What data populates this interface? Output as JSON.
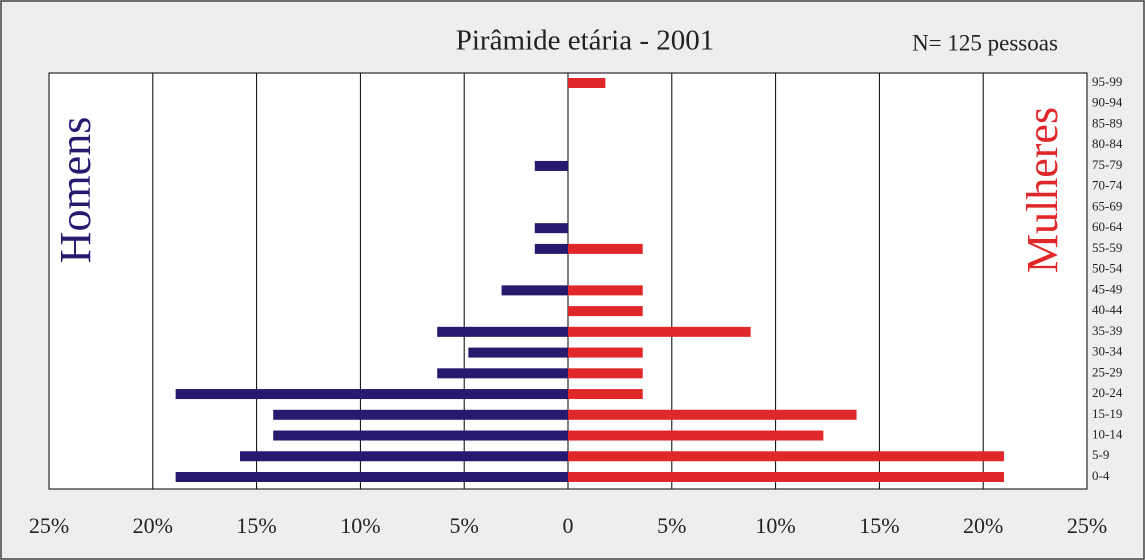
{
  "chart_data": {
    "type": "pyramid",
    "title": "Pirâmide etária  -  2001",
    "subtitle": "N= 125 pessoas",
    "categories": [
      "0-4",
      "5-9",
      "10-14",
      "15-19",
      "20-24",
      "25-29",
      "30-34",
      "35-39",
      "40-44",
      "45-49",
      "50-54",
      "55-59",
      "60-64",
      "65-69",
      "70-74",
      "75-79",
      "80-84",
      "85-89",
      "90-94",
      "95-99"
    ],
    "series": [
      {
        "name": "Homens",
        "color": "#28186e",
        "values": [
          -18.9,
          -15.8,
          -14.2,
          -14.2,
          -18.9,
          -6.3,
          -4.8,
          -6.3,
          0,
          -3.2,
          0,
          -1.6,
          -1.6,
          0,
          0,
          -1.6,
          0,
          0,
          0,
          0
        ]
      },
      {
        "name": "Mulheres",
        "color": "#e0282a",
        "values": [
          21.0,
          21.0,
          12.3,
          13.9,
          3.6,
          3.6,
          3.6,
          8.8,
          3.6,
          3.6,
          0,
          3.6,
          0,
          0,
          0,
          0,
          0,
          0,
          0,
          1.8
        ]
      }
    ],
    "xlim": [
      -25,
      25
    ],
    "xticks": [
      {
        "value": -25,
        "label": "25%"
      },
      {
        "value": -20,
        "label": "20%"
      },
      {
        "value": -15,
        "label": "15%"
      },
      {
        "value": -10,
        "label": "10%"
      },
      {
        "value": -5,
        "label": "5%"
      },
      0,
      {
        "value": 5,
        "label": "5%"
      },
      {
        "value": 10,
        "label": "10%"
      },
      {
        "value": 15,
        "label": "15%"
      },
      {
        "value": 20,
        "label": "20%"
      },
      {
        "value": 25,
        "label": "25%"
      }
    ],
    "grid": true
  }
}
